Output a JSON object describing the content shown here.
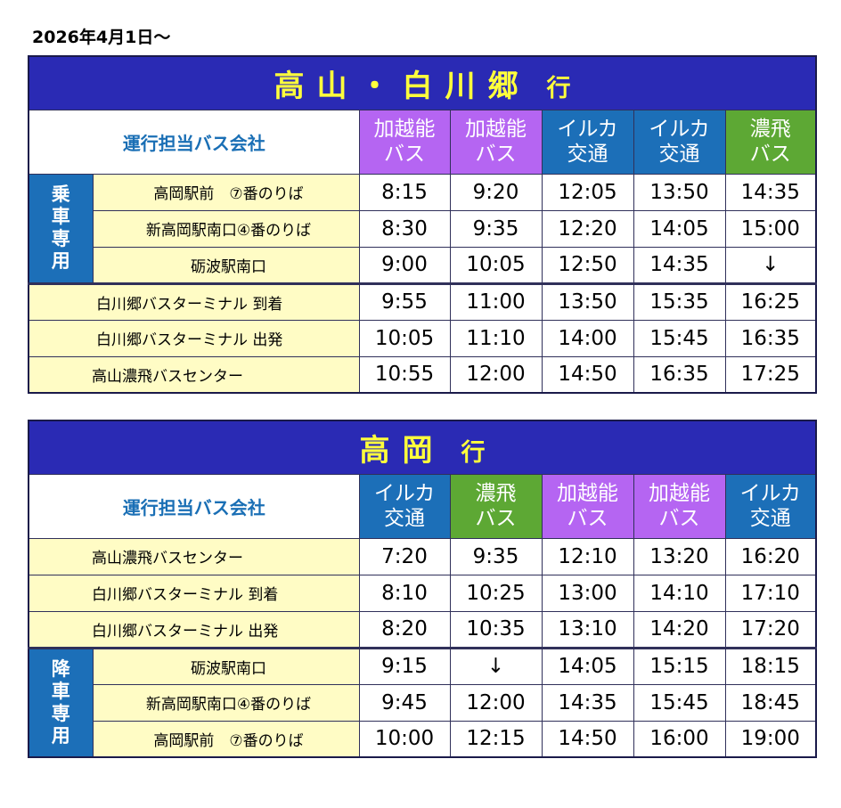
{
  "effective_date": "2026年4月1日～",
  "tables": [
    {
      "title": "高山・白川郷",
      "title_suffix": "行",
      "company_header": "運行担当バス会社",
      "companies": [
        {
          "line1": "加越能",
          "line2": "バス",
          "color": "#b565f2"
        },
        {
          "line1": "加越能",
          "line2": "バス",
          "color": "#b565f2"
        },
        {
          "line1": "イルカ",
          "line2": "交通",
          "color": "#1c6fb8"
        },
        {
          "line1": "イルカ",
          "line2": "交通",
          "color": "#1c6fb8"
        },
        {
          "line1": "濃飛",
          "line2": "バス",
          "color": "#5da834"
        }
      ],
      "side_label": [
        "乗",
        "車",
        "専",
        "用"
      ],
      "rows": [
        {
          "stop": "高岡駅前　⑦番のりば",
          "times": [
            "8:15",
            "9:20",
            "12:05",
            "13:50",
            "14:35"
          ]
        },
        {
          "stop": "新高岡駅南口④番のりば",
          "times": [
            "8:30",
            "9:35",
            "12:20",
            "14:05",
            "15:00"
          ]
        },
        {
          "stop": "砺波駅南口",
          "times": [
            "9:00",
            "10:05",
            "12:50",
            "14:35",
            "↓"
          ]
        },
        {
          "stop": "白川郷バスターミナル 到着",
          "times": [
            "9:55",
            "11:00",
            "13:50",
            "15:35",
            "16:25"
          ]
        },
        {
          "stop": "白川郷バスターミナル 出発",
          "times": [
            "10:05",
            "11:10",
            "14:00",
            "15:45",
            "16:35"
          ]
        },
        {
          "stop": "高山濃飛バスセンター",
          "times": [
            "10:55",
            "12:00",
            "14:50",
            "16:35",
            "17:25"
          ]
        }
      ]
    },
    {
      "title": "高岡",
      "title_suffix": "行",
      "company_header": "運行担当バス会社",
      "companies": [
        {
          "line1": "イルカ",
          "line2": "交通",
          "color": "#1c6fb8"
        },
        {
          "line1": "濃飛",
          "line2": "バス",
          "color": "#5da834"
        },
        {
          "line1": "加越能",
          "line2": "バス",
          "color": "#b565f2"
        },
        {
          "line1": "加越能",
          "line2": "バス",
          "color": "#b565f2"
        },
        {
          "line1": "イルカ",
          "line2": "交通",
          "color": "#1c6fb8"
        }
      ],
      "side_label": [
        "降",
        "車",
        "専",
        "用"
      ],
      "rows": [
        {
          "stop": "高山濃飛バスセンター",
          "times": [
            "7:20",
            "9:35",
            "12:10",
            "13:20",
            "16:20"
          ]
        },
        {
          "stop": "白川郷バスターミナル  到着",
          "times": [
            "8:10",
            "10:25",
            "13:00",
            "14:10",
            "17:10"
          ]
        },
        {
          "stop": "白川郷バスターミナル  出発",
          "times": [
            "8:20",
            "10:35",
            "13:10",
            "14:20",
            "17:20"
          ]
        },
        {
          "stop": "砺波駅南口",
          "times": [
            "9:15",
            "↓",
            "14:05",
            "15:15",
            "18:15"
          ]
        },
        {
          "stop": "新高岡駅南口④番のりば",
          "times": [
            "9:45",
            "12:00",
            "14:35",
            "15:45",
            "18:45"
          ]
        },
        {
          "stop": "高岡駅前　⑦番のりば",
          "times": [
            "10:00",
            "12:15",
            "14:50",
            "16:00",
            "19:00"
          ]
        }
      ]
    }
  ]
}
